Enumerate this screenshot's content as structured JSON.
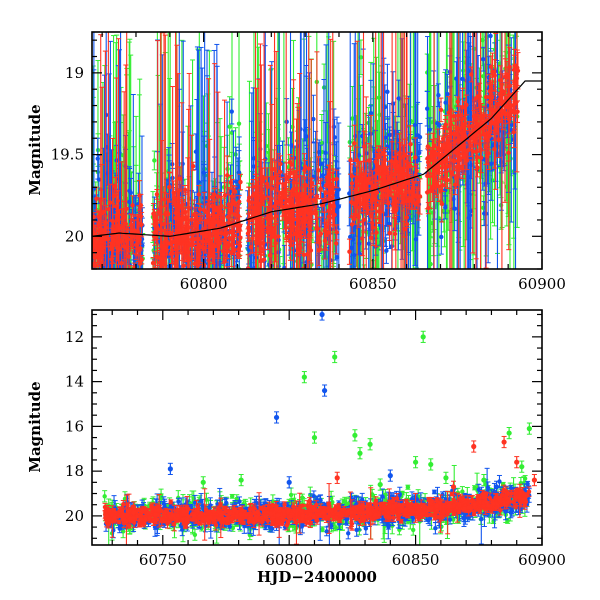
{
  "colors": {
    "background": "#ffffff",
    "axes": "#000000",
    "g": "#33ee33",
    "b": "#1155ee",
    "r": "#ff3322",
    "model": "#000000"
  },
  "chart_data": [
    {
      "type": "scatter",
      "title": "",
      "xlabel": "",
      "ylabel": "Magnitude",
      "xlim": [
        60767,
        60900
      ],
      "ylim": [
        20.2,
        18.75
      ],
      "y_inverted": true,
      "xticks": [
        60800,
        60850,
        60900
      ],
      "xtick_labels": [
        "60800",
        "60850",
        "60900"
      ],
      "yticks": [
        19,
        19.5,
        20
      ],
      "ytick_labels": [
        "19",
        "19.5",
        "20"
      ],
      "grid": false,
      "legend": "none",
      "series_colors": [
        "#33ee33",
        "#1155ee",
        "#ff3322"
      ],
      "density": [
        {
          "x": 60767,
          "y": 20.0
        },
        {
          "x": 60775,
          "y": 19.98
        },
        {
          "x": 60790,
          "y": 20.0
        },
        {
          "x": 60805,
          "y": 19.95
        },
        {
          "x": 60820,
          "y": 19.85
        },
        {
          "x": 60835,
          "y": 19.8
        },
        {
          "x": 60850,
          "y": 19.72
        },
        {
          "x": 60865,
          "y": 19.62
        },
        {
          "x": 60875,
          "y": 19.45
        },
        {
          "x": 60885,
          "y": 19.28
        },
        {
          "x": 60895,
          "y": 19.05
        }
      ],
      "gaps": [
        [
          60782,
          60785
        ],
        [
          60811,
          60813
        ],
        [
          60840,
          60843
        ],
        [
          60864,
          60866
        ]
      ]
    },
    {
      "type": "scatter",
      "title": "",
      "xlabel": "HJD−2400000",
      "ylabel": "Magnitude",
      "xlim": [
        60722,
        60900
      ],
      "ylim": [
        21.3,
        10.8
      ],
      "y_inverted": true,
      "xticks": [
        60750,
        60800,
        60850,
        60900
      ],
      "xtick_labels": [
        "60750",
        "60800",
        "60850",
        "60900"
      ],
      "yticks": [
        12,
        14,
        16,
        18,
        20
      ],
      "ytick_labels": [
        "12",
        "14",
        "16",
        "18",
        "20"
      ],
      "grid": false,
      "legend": "none",
      "density": [
        {
          "x": 60727,
          "y": 20.0
        },
        {
          "x": 60760,
          "y": 20.0
        },
        {
          "x": 60790,
          "y": 19.95
        },
        {
          "x": 60820,
          "y": 19.85
        },
        {
          "x": 60845,
          "y": 19.75
        },
        {
          "x": 60870,
          "y": 19.6
        },
        {
          "x": 60895,
          "y": 19.1
        }
      ],
      "outliers": [
        {
          "series": "b",
          "x": 60813,
          "y": 11.0
        },
        {
          "series": "g",
          "x": 60818,
          "y": 12.9
        },
        {
          "series": "g",
          "x": 60853,
          "y": 12.0
        },
        {
          "series": "g",
          "x": 60806,
          "y": 13.8
        },
        {
          "series": "b",
          "x": 60814,
          "y": 14.4
        },
        {
          "series": "b",
          "x": 60795,
          "y": 15.6
        },
        {
          "series": "g",
          "x": 60810,
          "y": 16.5
        },
        {
          "series": "g",
          "x": 60826,
          "y": 16.4
        },
        {
          "series": "g",
          "x": 60832,
          "y": 16.8
        },
        {
          "series": "g",
          "x": 60828,
          "y": 17.2
        },
        {
          "series": "r",
          "x": 60873,
          "y": 16.9
        },
        {
          "series": "r",
          "x": 60885,
          "y": 16.7
        },
        {
          "series": "g",
          "x": 60887,
          "y": 16.3
        },
        {
          "series": "g",
          "x": 60895,
          "y": 16.1
        },
        {
          "series": "b",
          "x": 60753,
          "y": 17.9
        },
        {
          "series": "g",
          "x": 60766,
          "y": 18.5
        },
        {
          "series": "g",
          "x": 60781,
          "y": 18.4
        },
        {
          "series": "b",
          "x": 60800,
          "y": 18.5
        },
        {
          "series": "r",
          "x": 60819,
          "y": 18.3
        },
        {
          "series": "g",
          "x": 60836,
          "y": 18.6
        },
        {
          "series": "b",
          "x": 60840,
          "y": 18.2
        },
        {
          "series": "g",
          "x": 60850,
          "y": 17.6
        },
        {
          "series": "g",
          "x": 60856,
          "y": 17.7
        },
        {
          "series": "g",
          "x": 60862,
          "y": 18.3
        },
        {
          "series": "r",
          "x": 60865,
          "y": 18.7
        },
        {
          "series": "g",
          "x": 60877,
          "y": 18.4
        },
        {
          "series": "b",
          "x": 60882,
          "y": 18.7
        },
        {
          "series": "r",
          "x": 60890,
          "y": 17.6
        },
        {
          "series": "g",
          "x": 60892,
          "y": 17.8
        },
        {
          "series": "r",
          "x": 60897,
          "y": 18.4
        }
      ]
    }
  ]
}
